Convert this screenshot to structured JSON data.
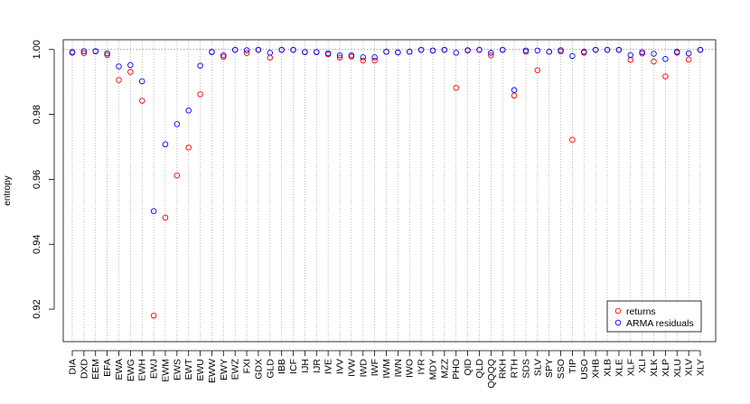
{
  "chart_data": {
    "type": "scatter",
    "title": "",
    "xlabel": "",
    "ylabel": "entropy",
    "ylim": [
      0.91,
      1.003
    ],
    "yticks": [
      0.92,
      0.94,
      0.96,
      0.98,
      1.0
    ],
    "ytick_labels": [
      "0.92",
      "0.94",
      "0.96",
      "0.98",
      "1.00"
    ],
    "reference_line": 1.0,
    "grid": "vertical dotted",
    "legend_position": "bottom-right",
    "categories": [
      "DIA",
      "DXD",
      "EEM",
      "EFA",
      "EWA",
      "EWG",
      "EWH",
      "EWJ",
      "EWM",
      "EWS",
      "EWT",
      "EWU",
      "EWW",
      "EWY",
      "EWZ",
      "FXI",
      "GDX",
      "GLD",
      "IBB",
      "ICF",
      "IJH",
      "IJR",
      "IVE",
      "IVV",
      "IVW",
      "IWD",
      "IWF",
      "IWM",
      "IWN",
      "IWO",
      "IYR",
      "MDY",
      "MZZ",
      "PHO",
      "QID",
      "QLD",
      "QQQQ",
      "RKH",
      "RTH",
      "SDS",
      "SLV",
      "SPY",
      "SSO",
      "TIP",
      "USO",
      "XHB",
      "XLB",
      "XLE",
      "XLF",
      "XLI",
      "XLK",
      "XLP",
      "XLU",
      "XLV",
      "XLY"
    ],
    "series": [
      {
        "name": "returns",
        "color": "#ff0000",
        "values": [
          0.999,
          0.9989,
          0.9994,
          0.9983,
          0.9906,
          0.9931,
          0.9842,
          0.918,
          0.9482,
          0.9612,
          0.9698,
          0.9862,
          0.9993,
          0.9977,
          0.9999,
          0.9989,
          0.9999,
          0.9975,
          0.9999,
          0.9999,
          0.9992,
          0.9992,
          0.9985,
          0.9975,
          0.9978,
          0.9966,
          0.9966,
          0.9993,
          0.9991,
          0.9993,
          0.9999,
          0.9997,
          0.9999,
          0.9882,
          0.9997,
          0.9999,
          0.9982,
          0.9999,
          0.9858,
          0.9993,
          0.9936,
          0.9993,
          0.9994,
          0.9722,
          0.999,
          0.9999,
          0.9999,
          0.9999,
          0.9968,
          0.9988,
          0.9963,
          0.9917,
          0.999,
          0.9969,
          0.9999
        ]
      },
      {
        "name": "ARMA residuals",
        "color": "#0000ff",
        "values": [
          0.9992,
          0.9995,
          0.9995,
          0.9988,
          0.9948,
          0.9952,
          0.9902,
          0.9502,
          0.9708,
          0.977,
          0.9812,
          0.995,
          0.9992,
          0.9982,
          0.9999,
          0.9998,
          0.9999,
          0.999,
          0.9999,
          0.9999,
          0.9992,
          0.9992,
          0.9988,
          0.9982,
          0.9982,
          0.9976,
          0.9976,
          0.9993,
          0.9991,
          0.9993,
          0.9999,
          0.9997,
          0.9999,
          0.999,
          0.9998,
          0.9999,
          0.999,
          0.9999,
          0.9875,
          0.9997,
          0.9997,
          0.9993,
          0.9998,
          0.998,
          0.9993,
          0.9999,
          0.9999,
          0.9999,
          0.9983,
          0.9992,
          0.9987,
          0.9971,
          0.9993,
          0.9988,
          0.9999
        ]
      }
    ]
  }
}
